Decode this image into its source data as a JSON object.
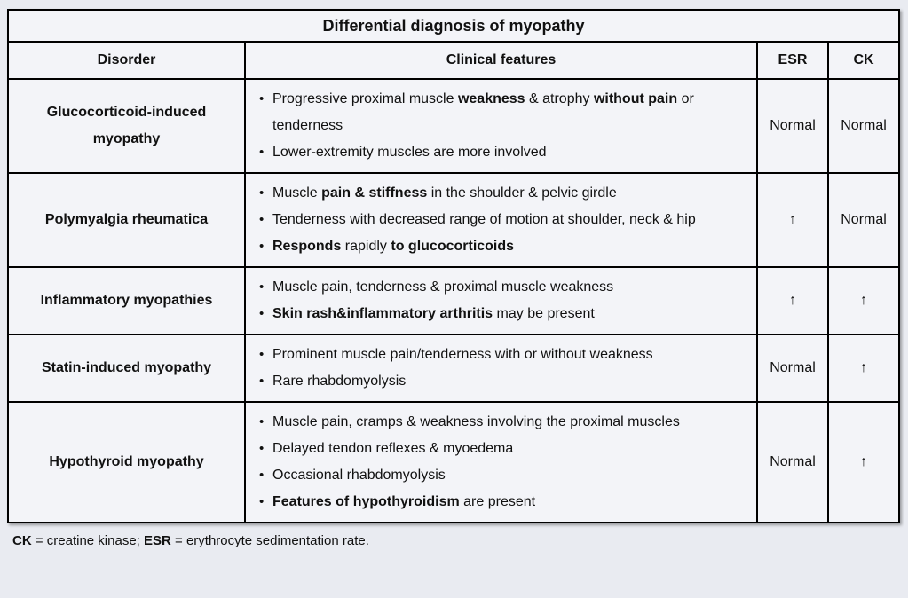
{
  "colors": {
    "page_bg": "#e9ebf1",
    "cell_bg": "#f3f4f8",
    "border": "#000000",
    "text": "#111111"
  },
  "table": {
    "title": "Differential diagnosis of myopathy",
    "columns": [
      "Disorder",
      "Clinical features",
      "ESR",
      "CK"
    ],
    "rows": [
      {
        "disorder": "Glucocorticoid-induced myopathy",
        "features": [
          [
            {
              "text": "Progressive proximal muscle ",
              "bold": false
            },
            {
              "text": "weakness",
              "bold": true
            },
            {
              "text": " & atrophy ",
              "bold": false
            },
            {
              "text": "without pain",
              "bold": true
            },
            {
              "text": " or tenderness",
              "bold": false
            }
          ],
          [
            {
              "text": "Lower-extremity muscles are more involved",
              "bold": false
            }
          ]
        ],
        "esr": "Normal",
        "ck": "Normal"
      },
      {
        "disorder": "Polymyalgia rheumatica",
        "features": [
          [
            {
              "text": "Muscle ",
              "bold": false
            },
            {
              "text": "pain & stiffness",
              "bold": true
            },
            {
              "text": " in the shoulder & pelvic girdle",
              "bold": false
            }
          ],
          [
            {
              "text": "Tenderness with decreased range of motion at shoulder, neck & hip",
              "bold": false
            }
          ],
          [
            {
              "text": "Responds",
              "bold": true
            },
            {
              "text": " rapidly ",
              "bold": false
            },
            {
              "text": "to glucocorticoids",
              "bold": true
            }
          ]
        ],
        "esr": "↑",
        "ck": "Normal"
      },
      {
        "disorder": "Inflammatory myopathies",
        "features": [
          [
            {
              "text": "Muscle pain, tenderness & proximal muscle weakness",
              "bold": false
            }
          ],
          [
            {
              "text": "Skin rash&inflammatory arthritis",
              "bold": true
            },
            {
              "text": " may be present",
              "bold": false
            }
          ]
        ],
        "esr": "↑",
        "ck": "↑"
      },
      {
        "disorder": "Statin-induced myopathy",
        "features": [
          [
            {
              "text": "Prominent muscle pain/tenderness with or without weakness",
              "bold": false
            }
          ],
          [
            {
              "text": "Rare rhabdomyolysis",
              "bold": false
            }
          ]
        ],
        "esr": "Normal",
        "ck": "↑"
      },
      {
        "disorder": "Hypothyroid myopathy",
        "features": [
          [
            {
              "text": "Muscle pain, cramps & weakness involving the proximal muscles",
              "bold": false
            }
          ],
          [
            {
              "text": "Delayed tendon reflexes & myoedema",
              "bold": false
            }
          ],
          [
            {
              "text": "Occasional rhabdomyolysis",
              "bold": false
            }
          ],
          [
            {
              "text": "Features of hypothyroidism",
              "bold": true
            },
            {
              "text": " are present",
              "bold": false
            }
          ]
        ],
        "esr": "Normal",
        "ck": "↑"
      }
    ],
    "footnote": [
      {
        "text": "CK",
        "bold": true
      },
      {
        "text": " = creatine kinase; ",
        "bold": false
      },
      {
        "text": "ESR",
        "bold": true
      },
      {
        "text": " = erythrocyte sedimentation rate.",
        "bold": false
      }
    ]
  }
}
